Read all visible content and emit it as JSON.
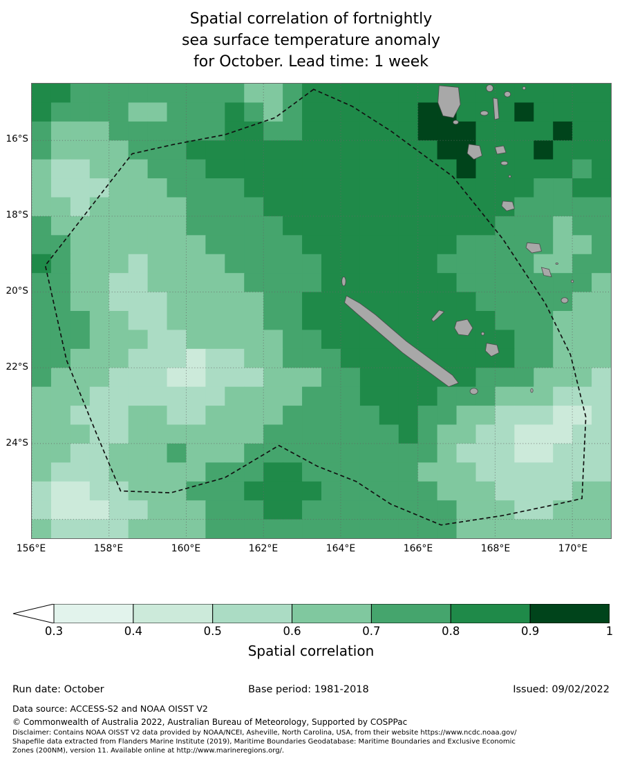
{
  "title": "Spatial correlation of fortnightly\nsea surface temperature anomaly\nfor October. Lead time: 1 week",
  "chart_data": {
    "type": "heatmap",
    "title": "Spatial correlation of fortnightly sea surface temperature anomaly for October. Lead time: 1 week",
    "colorbar_label": "Spatial correlation",
    "lon_range": [
      156,
      171
    ],
    "lat_range_south": [
      14.5,
      26.5
    ],
    "cell_size_deg": 0.5,
    "x_ticks": [
      {
        "value": 156,
        "label": "156°E"
      },
      {
        "value": 158,
        "label": "158°E"
      },
      {
        "value": 160,
        "label": "160°E"
      },
      {
        "value": 162,
        "label": "162°E"
      },
      {
        "value": 164,
        "label": "164°E"
      },
      {
        "value": 166,
        "label": "166°E"
      },
      {
        "value": 168,
        "label": "168°E"
      },
      {
        "value": 170,
        "label": "170°E"
      }
    ],
    "y_ticks": [
      {
        "value": 16,
        "label": "16°S"
      },
      {
        "value": 18,
        "label": "18°S"
      },
      {
        "value": 20,
        "label": "20°S"
      },
      {
        "value": 22,
        "label": "22°S"
      },
      {
        "value": 24,
        "label": "24°S"
      }
    ],
    "grid_lons": [
      156,
      158,
      160,
      162,
      164,
      166,
      168,
      170
    ],
    "grid_lats": [
      16,
      18,
      20,
      22,
      24,
      26
    ],
    "levels": [
      0.3,
      0.4,
      0.5,
      0.6,
      0.7,
      0.8,
      0.9,
      1.0
    ],
    "palette": [
      "#e2f3ec",
      "#cceada",
      "#abdcc4",
      "#80c89f",
      "#45a56d",
      "#1f8a49",
      "#00441b"
    ],
    "below_min_color": "#ffffff",
    "colorbar_ticks": [
      "0.3",
      "0.4",
      "0.5",
      "0.6",
      "0.7",
      "0.8",
      "0.9",
      "1"
    ],
    "grid_legend": "each digit d in grid rows = correlation bin [levels[d], levels[d+1]]; rows run north (14.5°S) to south (26.5°S), cols 156°E to 171°E, 0.5° cells",
    "grid": [
      "554444444443345555555555555555",
      "544443344454345555556655565555",
      "433344444455445555556665555655",
      "433334445555555555555665556555",
      "322333444555555555555565555545",
      "322233344445555555555555554455",
      "332333334444555555555555544444",
      "433333334444455555555555444344",
      "443333333444445555555544444334",
      "543332333344444555555444443344",
      "443322333334444555555544444443",
      "443322233333445555555554444433",
      "444332233333445555555555444333",
      "444333223333344555555555544333",
      "443332221223344455555555544333",
      "433322211222333445555554443332",
      "333222222233334445555444333222",
      "332223322333344444554433222112",
      "333223333333444444454332211122",
      "332233343334444444444322211222",
      "322233333444554444443332222222",
      "211223334445555444444333222233",
      "211122333444554444444433322333",
      "322223333444444444444433333333"
    ],
    "land_color": "#a8a8a8",
    "eez_boundary": [
      [
        163.3,
        14.65
      ],
      [
        162.3,
        15.4
      ],
      [
        161.0,
        15.85
      ],
      [
        159.7,
        16.1
      ],
      [
        158.6,
        16.35
      ],
      [
        156.35,
        19.3
      ],
      [
        156.9,
        21.8
      ],
      [
        157.7,
        23.8
      ],
      [
        158.3,
        25.25
      ],
      [
        159.6,
        25.3
      ],
      [
        161.0,
        24.9
      ],
      [
        162.4,
        24.05
      ],
      [
        163.4,
        24.6
      ],
      [
        164.4,
        25.0
      ],
      [
        165.3,
        25.6
      ],
      [
        166.6,
        26.15
      ],
      [
        168.2,
        25.9
      ],
      [
        169.6,
        25.6
      ],
      [
        170.25,
        25.45
      ],
      [
        170.35,
        23.3
      ],
      [
        169.95,
        21.65
      ],
      [
        169.3,
        20.3
      ],
      [
        168.2,
        18.6
      ],
      [
        166.9,
        16.95
      ],
      [
        165.3,
        15.75
      ],
      [
        164.3,
        15.1
      ]
    ],
    "land": [
      {
        "name": "grande-terre",
        "pts": [
          [
            164.15,
            20.1
          ],
          [
            164.5,
            20.3
          ],
          [
            164.9,
            20.6
          ],
          [
            165.3,
            20.95
          ],
          [
            165.7,
            21.3
          ],
          [
            166.1,
            21.6
          ],
          [
            166.5,
            21.9
          ],
          [
            166.9,
            22.2
          ],
          [
            167.05,
            22.4
          ],
          [
            166.8,
            22.5
          ],
          [
            166.4,
            22.2
          ],
          [
            166.0,
            21.9
          ],
          [
            165.6,
            21.6
          ],
          [
            165.2,
            21.25
          ],
          [
            164.8,
            20.9
          ],
          [
            164.4,
            20.55
          ],
          [
            164.1,
            20.28
          ]
        ]
      },
      {
        "name": "belep",
        "c": [
          164.08,
          19.72
        ],
        "r": [
          0.05,
          0.12
        ]
      },
      {
        "name": "ouvea",
        "pts": [
          [
            166.35,
            20.72
          ],
          [
            166.55,
            20.48
          ],
          [
            166.68,
            20.52
          ],
          [
            166.5,
            20.7
          ],
          [
            166.4,
            20.78
          ]
        ]
      },
      {
        "name": "lifou",
        "pts": [
          [
            167.0,
            20.78
          ],
          [
            167.28,
            20.72
          ],
          [
            167.42,
            20.95
          ],
          [
            167.3,
            21.15
          ],
          [
            167.05,
            21.12
          ],
          [
            166.95,
            20.95
          ]
        ]
      },
      {
        "name": "tiga",
        "c": [
          167.68,
          21.1
        ],
        "r": [
          0.04,
          0.04
        ]
      },
      {
        "name": "mare",
        "pts": [
          [
            167.78,
            21.35
          ],
          [
            168.05,
            21.4
          ],
          [
            168.1,
            21.6
          ],
          [
            167.9,
            21.7
          ],
          [
            167.75,
            21.55
          ]
        ]
      },
      {
        "name": "isle-of-pines",
        "c": [
          167.45,
          22.62
        ],
        "r": [
          0.1,
          0.08
        ]
      },
      {
        "name": "walpole",
        "c": [
          168.95,
          22.6
        ],
        "r": [
          0.03,
          0.05
        ]
      },
      {
        "name": "espiritu-santo",
        "pts": [
          [
            166.55,
            14.55
          ],
          [
            167.05,
            14.6
          ],
          [
            167.1,
            15.05
          ],
          [
            166.92,
            15.4
          ],
          [
            166.65,
            15.35
          ],
          [
            166.52,
            15.0
          ]
        ]
      },
      {
        "name": "malo",
        "c": [
          166.98,
          15.52
        ],
        "r": [
          0.07,
          0.05
        ]
      },
      {
        "name": "maewo-pentecost",
        "pts": [
          [
            167.95,
            14.88
          ],
          [
            168.06,
            14.9
          ],
          [
            168.1,
            15.42
          ],
          [
            167.99,
            15.45
          ]
        ]
      },
      {
        "name": "ambae",
        "c": [
          167.72,
          15.28
        ],
        "r": [
          0.1,
          0.06
        ]
      },
      {
        "name": "ambrym",
        "pts": [
          [
            168.0,
            16.18
          ],
          [
            168.22,
            16.14
          ],
          [
            168.28,
            16.32
          ],
          [
            168.05,
            16.36
          ]
        ]
      },
      {
        "name": "malakula",
        "pts": [
          [
            167.32,
            16.1
          ],
          [
            167.6,
            16.14
          ],
          [
            167.66,
            16.4
          ],
          [
            167.45,
            16.5
          ],
          [
            167.28,
            16.34
          ]
        ]
      },
      {
        "name": "epi",
        "c": [
          168.24,
          16.6
        ],
        "r": [
          0.09,
          0.05
        ]
      },
      {
        "name": "shepherd",
        "c": [
          168.38,
          16.95
        ],
        "r": [
          0.03,
          0.03
        ]
      },
      {
        "name": "efate",
        "pts": [
          [
            168.2,
            17.6
          ],
          [
            168.45,
            17.62
          ],
          [
            168.5,
            17.8
          ],
          [
            168.3,
            17.86
          ],
          [
            168.17,
            17.73
          ]
        ]
      },
      {
        "name": "erromango",
        "pts": [
          [
            168.83,
            18.7
          ],
          [
            169.15,
            18.73
          ],
          [
            169.2,
            18.92
          ],
          [
            168.95,
            18.97
          ],
          [
            168.8,
            18.83
          ]
        ]
      },
      {
        "name": "tanna",
        "pts": [
          [
            169.2,
            19.35
          ],
          [
            169.4,
            19.4
          ],
          [
            169.46,
            19.6
          ],
          [
            169.26,
            19.56
          ]
        ]
      },
      {
        "name": "aniwa",
        "c": [
          169.6,
          19.25
        ],
        "r": [
          0.03,
          0.02
        ]
      },
      {
        "name": "futuna",
        "c": [
          170.0,
          19.72
        ],
        "r": [
          0.03,
          0.03
        ]
      },
      {
        "name": "aneityum",
        "c": [
          169.8,
          20.22
        ],
        "r": [
          0.09,
          0.07
        ]
      },
      {
        "name": "vanua-lava",
        "c": [
          167.86,
          14.62
        ],
        "r": [
          0.09,
          0.09
        ]
      },
      {
        "name": "gaua",
        "c": [
          168.32,
          14.78
        ],
        "r": [
          0.08,
          0.07
        ]
      },
      {
        "name": "mota",
        "c": [
          168.75,
          14.62
        ],
        "r": [
          0.04,
          0.04
        ]
      }
    ]
  },
  "footer": {
    "run_date": "Run date: October",
    "base_period": "Base period: 1981-2018",
    "issued": "Issued: 09/02/2022",
    "data_source": "Data source: ACCESS-S2 and NOAA OISST V2",
    "copyright": "© Commonwealth of Australia 2022, Australian Bureau of Meteorology, Supported by COSPPac",
    "disclaimer_lines": [
      "Disclaimer: Contains NOAA OISST V2 data provided by NOAA/NCEI, Asheville, North Carolina, USA, from their website https://www.ncdc.noaa.gov/",
      "Shapefile data extracted from Flanders Marine Institute (2019), Maritime Boundaries Geodatabase: Maritime Boundaries and Exclusive Economic",
      "Zones (200NM), version 11. Available online at http://www.marineregions.org/."
    ]
  }
}
